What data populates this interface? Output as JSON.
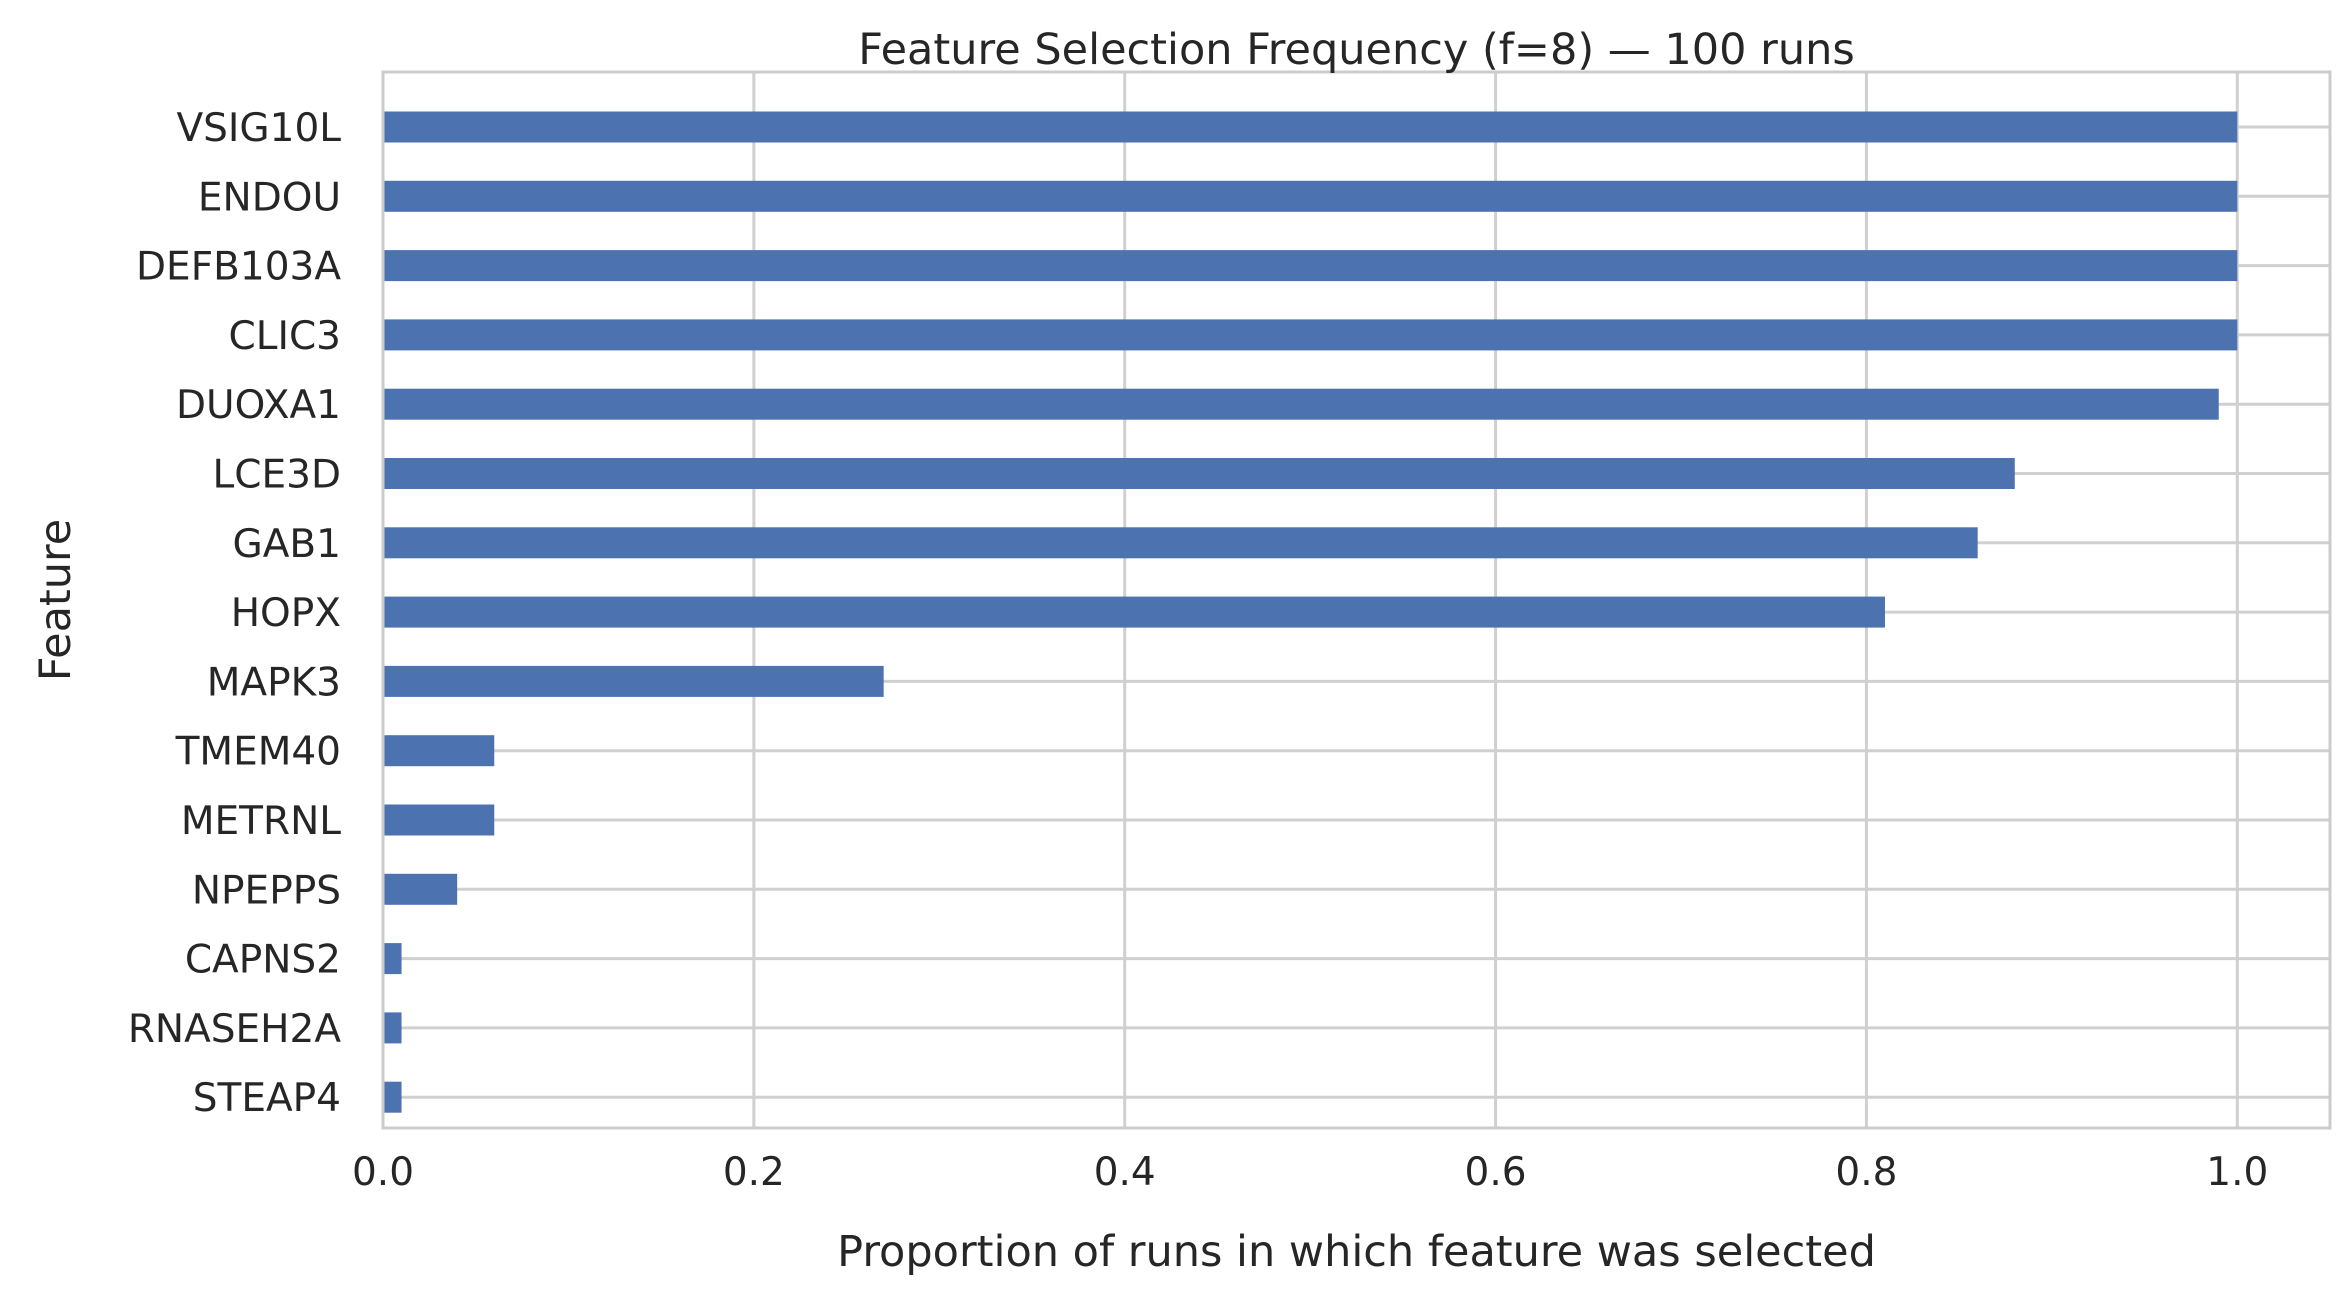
{
  "chart_data": {
    "type": "bar",
    "orientation": "horizontal",
    "title": "Feature Selection Frequency (f=8) — 100 runs",
    "xlabel": "Proportion of runs in which feature was selected",
    "ylabel": "Feature",
    "categories": [
      "VSIG10L",
      "ENDOU",
      "DEFB103A",
      "CLIC3",
      "DUOXA1",
      "LCE3D",
      "GAB1",
      "HOPX",
      "MAPK3",
      "TMEM40",
      "METRNL",
      "NPEPPS",
      "CAPNS2",
      "RNASEH2A",
      "STEAP4"
    ],
    "values": [
      1.0,
      1.0,
      1.0,
      1.0,
      0.99,
      0.88,
      0.86,
      0.81,
      0.27,
      0.06,
      0.06,
      0.04,
      0.01,
      0.01,
      0.01
    ],
    "xlim": [
      0,
      1.05
    ],
    "xticks": [
      0.0,
      0.2,
      0.4,
      0.6,
      0.8,
      1.0
    ],
    "xtick_labels": [
      "0.0",
      "0.2",
      "0.4",
      "0.6",
      "0.8",
      "1.0"
    ],
    "grid": true,
    "legend": "none",
    "colors": {
      "bar": "#4c72b0",
      "grid": "#d0d0d0",
      "spine": "#cccccc",
      "text": "#262626",
      "background": "#ffffff"
    }
  }
}
